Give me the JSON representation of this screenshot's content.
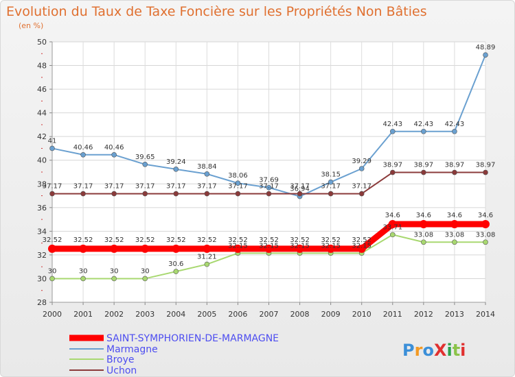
{
  "chart_data": {
    "type": "line",
    "title": "Evolution du Taux de Taxe Foncière sur les Propriétés Non Bâties",
    "ylabel": "(en %)",
    "xlabel": "",
    "ylim": [
      28,
      50
    ],
    "yticks": [
      28,
      30,
      32,
      34,
      36,
      38,
      40,
      42,
      44,
      46,
      48,
      50
    ],
    "categories": [
      "2000",
      "2001",
      "2002",
      "2003",
      "2004",
      "2005",
      "2006",
      "2007",
      "2008",
      "2009",
      "2010",
      "2011",
      "2012",
      "2013",
      "2014"
    ],
    "grid": true,
    "legend_position": "bottom-left",
    "series": [
      {
        "name": "SAINT-SYMPHORIEN-DE-MARMAGNE",
        "color": "#ff0000",
        "thick": true,
        "values": [
          32.52,
          32.52,
          32.52,
          32.52,
          32.52,
          32.52,
          32.52,
          32.52,
          32.52,
          32.52,
          32.52,
          34.6,
          34.6,
          34.6,
          34.6
        ],
        "labels": [
          "32.52",
          "32.52",
          "32.52",
          "32.52",
          "32.52",
          "32.52",
          "32.52",
          "32.52",
          "32.52",
          "32.52",
          "32.52",
          "34.6",
          "34.6",
          "34.6",
          "34.6"
        ]
      },
      {
        "name": "Marmagne",
        "color": "#6aa0d0",
        "thick": false,
        "values": [
          41,
          40.46,
          40.46,
          39.65,
          39.24,
          38.84,
          38.06,
          37.69,
          36.94,
          38.15,
          39.29,
          42.43,
          42.43,
          42.43,
          48.89
        ],
        "labels": [
          "41",
          "40.46",
          "40.46",
          "39.65",
          "39.24",
          "38.84",
          "38.06",
          "37.69",
          "36.94",
          "38.15",
          "39.29",
          "42.43",
          "42.43",
          "42.43",
          "48.89"
        ]
      },
      {
        "name": "Broye",
        "color": "#a8d870",
        "thick": false,
        "values": [
          30,
          30,
          30,
          30,
          30.6,
          31.21,
          32.15,
          32.15,
          32.15,
          32.15,
          32.15,
          33.71,
          33.08,
          33.08,
          33.08
        ],
        "labels": [
          "30",
          "30",
          "30",
          "30",
          "30.6",
          "31.21",
          "32.15",
          "32.15",
          "32.15",
          "32.15",
          "32.15",
          "33.71",
          "33.08",
          "33.08",
          "33.08"
        ]
      },
      {
        "name": "Uchon",
        "color": "#8b3a3a",
        "thick": false,
        "values": [
          37.17,
          37.17,
          37.17,
          37.17,
          37.17,
          37.17,
          37.17,
          37.17,
          37.17,
          37.17,
          37.17,
          38.97,
          38.97,
          38.97,
          38.97
        ],
        "labels": [
          "37.17",
          "37.17",
          "37.17",
          "37.17",
          "37.17",
          "37.17",
          "37.17",
          "37.17",
          "37.17",
          "37.17",
          "37.17",
          "38.97",
          "38.97",
          "38.97",
          "38.97"
        ]
      }
    ]
  },
  "logo": {
    "text": "ProXiti"
  }
}
